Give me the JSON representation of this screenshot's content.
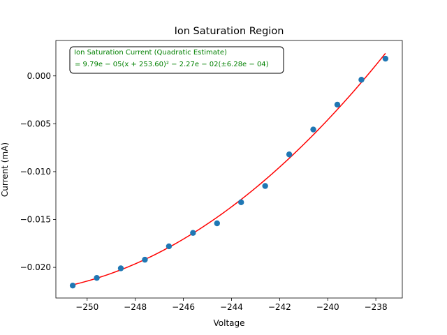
{
  "chart_data": {
    "type": "scatter",
    "title": "Ion Saturation Region",
    "xlabel": "Voltage",
    "ylabel": "Current (mA)",
    "xlim": [
      -251.3,
      -236.9
    ],
    "ylim": [
      -0.0232,
      0.0037
    ],
    "x_ticks": [
      -250,
      -248,
      -246,
      -244,
      -242,
      -240,
      -238
    ],
    "x_tick_labels": [
      "−250",
      "−248",
      "−246",
      "−244",
      "−242",
      "−240",
      "−238"
    ],
    "y_ticks": [
      0.0,
      -0.005,
      -0.01,
      -0.015,
      -0.02
    ],
    "y_tick_labels": [
      "0.000",
      "−0.005",
      "−0.010",
      "−0.015",
      "−0.020"
    ],
    "grid": false,
    "series": [
      {
        "kind": "points",
        "color": "#1f77b4",
        "points": [
          {
            "x": -250.6,
            "y": -0.0219
          },
          {
            "x": -249.6,
            "y": -0.0211
          },
          {
            "x": -248.6,
            "y": -0.0201
          },
          {
            "x": -247.6,
            "y": -0.0192
          },
          {
            "x": -246.6,
            "y": -0.0178
          },
          {
            "x": -245.6,
            "y": -0.0164
          },
          {
            "x": -244.6,
            "y": -0.0154
          },
          {
            "x": -243.6,
            "y": -0.0132
          },
          {
            "x": -242.6,
            "y": -0.0115
          },
          {
            "x": -241.6,
            "y": -0.0082
          },
          {
            "x": -240.6,
            "y": -0.0056
          },
          {
            "x": -239.6,
            "y": -0.003
          },
          {
            "x": -238.6,
            "y": -0.0004
          },
          {
            "x": -237.6,
            "y": 0.0018
          }
        ]
      },
      {
        "kind": "fit",
        "color": "#ff0000",
        "model": "quadratic",
        "a": 9.79e-05,
        "x0": -253.6,
        "c": -0.0227,
        "x_range": [
          -250.6,
          -237.6
        ]
      }
    ],
    "annotation": {
      "line1": "Ion Saturation Current (Quadratic Estimate)",
      "line2": "= 9.79e − 05(x + 253.60)² − 2.27e − 02(±6.28e − 04)",
      "color": "#008000",
      "location": "upper-left"
    }
  }
}
